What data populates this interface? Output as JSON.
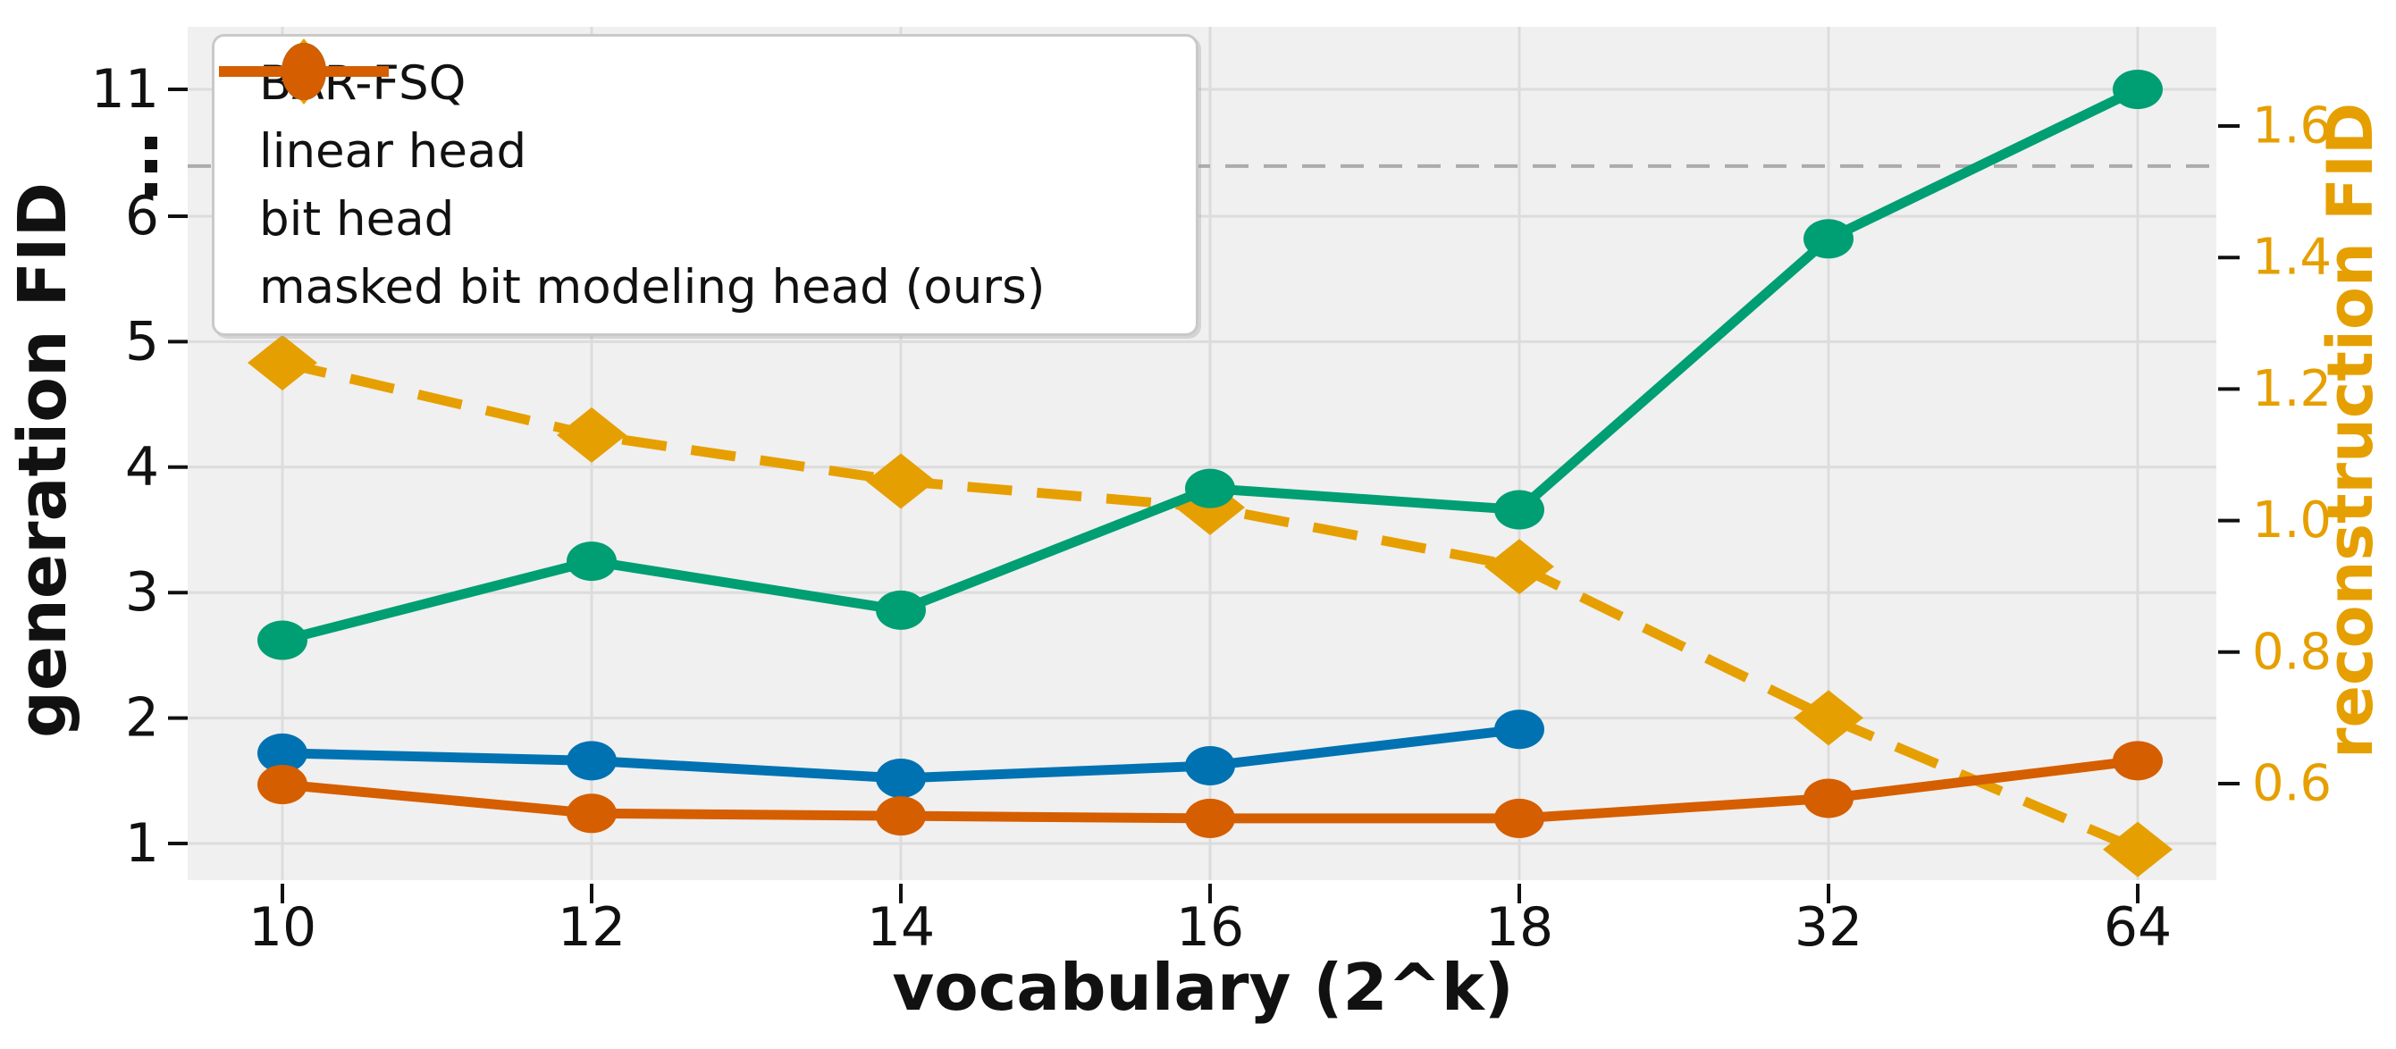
{
  "chart_data": {
    "type": "line",
    "title": "",
    "xlabel": "vocabulary (2^k)",
    "ylabel_left": "generation FID",
    "ylabel_right": "reconstruction FID",
    "categories": [
      10,
      12,
      14,
      16,
      18,
      32,
      64
    ],
    "x_tick_labels": [
      "10",
      "12",
      "14",
      "16",
      "18",
      "32",
      "64"
    ],
    "left_axis": {
      "label": "generation FID",
      "ticks": [
        1,
        2,
        3,
        4,
        5,
        6,
        11
      ],
      "tick_labels": [
        "1",
        "2",
        "3",
        "4",
        "5",
        "6",
        "11"
      ],
      "broken_axis": true,
      "break_between": [
        6,
        11
      ],
      "break_marker": "vertical-dots",
      "color": "#111111"
    },
    "right_axis": {
      "label": "reconstruction FID",
      "ticks": [
        0.6,
        0.8,
        1.0,
        1.2,
        1.4,
        1.6
      ],
      "tick_labels": [
        "0.6",
        "0.8",
        "1.0",
        "1.2",
        "1.4",
        "1.6"
      ],
      "color": "#E69F00"
    },
    "break_line": {
      "style": "dashed",
      "color": "#ababab",
      "left_axis_value": 6.4,
      "right_axis_value": 1.54
    },
    "grid": true,
    "legend_position": "upper-left",
    "plot_background": "#f0f0f0",
    "grid_color": "#dcdcdc",
    "series": [
      {
        "name": "BAR-FSQ",
        "axis": "right",
        "color": "#E69F00",
        "line_style": "dashed",
        "marker": "diamond",
        "values": [
          1.24,
          1.13,
          1.06,
          1.02,
          0.93,
          0.7,
          0.5
        ]
      },
      {
        "name": "linear head",
        "axis": "left",
        "color": "#0072B2",
        "line_style": "solid",
        "marker": "circle",
        "values": [
          1.72,
          1.66,
          1.52,
          1.62,
          1.91,
          null,
          null
        ]
      },
      {
        "name": "bit head",
        "axis": "left",
        "color": "#009E73",
        "line_style": "solid",
        "marker": "circle",
        "values": [
          2.62,
          3.25,
          2.86,
          3.83,
          3.66,
          5.82,
          11.0
        ]
      },
      {
        "name": "masked bit modeling head (ours)",
        "axis": "left",
        "color": "#D55E00",
        "line_style": "solid",
        "marker": "circle",
        "values": [
          1.47,
          1.24,
          1.22,
          1.2,
          1.2,
          1.36,
          1.66
        ]
      }
    ]
  }
}
